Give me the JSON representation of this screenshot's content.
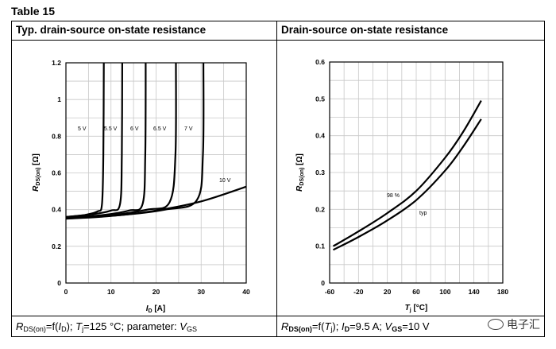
{
  "table_label": "Table 15",
  "left_header": "Typ. drain-source on-state resistance",
  "right_header": "Drain-source on-state resistance",
  "left_caption": {
    "r": "R",
    "r_sub": "DS(on)",
    "eq": "=f(",
    "i": "I",
    "i_sub": "D",
    "mid": "); ",
    "t": "T",
    "t_sub": "j",
    "rest": "=125 °C; parameter: ",
    "v": "V",
    "v_sub": "GS"
  },
  "right_caption": {
    "r": "R",
    "r_sub": "DS(on)",
    "eq": "=f(",
    "t": "T",
    "t_sub": "j",
    "mid": "); ",
    "i": "I",
    "i_sub": "D",
    "rest1": "=9.5 A; ",
    "v": "V",
    "v_sub": "GS",
    "rest2": "=10 V"
  },
  "watermark": "电子汇",
  "chart_data": [
    {
      "type": "line",
      "title": "Typ. drain-source on-state resistance",
      "xlabel": "I_D [A]",
      "ylabel": "R_DS(on) [Ω]",
      "xlim": [
        0,
        40
      ],
      "ylim": [
        0,
        1.2
      ],
      "xticks": [
        0,
        10,
        20,
        30,
        40
      ],
      "yticks": [
        0,
        0.2,
        0.4,
        0.6,
        0.8,
        1,
        1.2
      ],
      "xtick_labels": [
        "0",
        "10",
        "20",
        "30",
        "40"
      ],
      "ytick_labels": [
        "0",
        "0.2",
        "0.4",
        "0.6",
        "0.8",
        "1",
        "1.2"
      ],
      "series": [
        {
          "name": "5 V",
          "x": [
            0,
            4,
            7,
            8,
            8.3,
            8.4
          ],
          "y": [
            0.36,
            0.37,
            0.39,
            0.43,
            0.7,
            1.2
          ]
        },
        {
          "name": "5.5 V",
          "x": [
            0,
            6,
            10,
            12,
            12.4,
            12.5
          ],
          "y": [
            0.36,
            0.375,
            0.395,
            0.43,
            0.7,
            1.2
          ]
        },
        {
          "name": "6 V",
          "x": [
            0,
            8,
            14,
            17,
            17.6,
            17.7
          ],
          "y": [
            0.355,
            0.37,
            0.395,
            0.43,
            0.7,
            1.2
          ]
        },
        {
          "name": "6.5 V",
          "x": [
            0,
            10,
            18,
            23,
            24.3,
            24.4
          ],
          "y": [
            0.355,
            0.37,
            0.4,
            0.44,
            0.7,
            1.2
          ]
        },
        {
          "name": "7 V",
          "x": [
            0,
            12,
            22,
            29,
            30.4,
            30.5
          ],
          "y": [
            0.355,
            0.37,
            0.4,
            0.45,
            0.7,
            1.2
          ]
        },
        {
          "name": "10 V",
          "x": [
            0,
            10,
            20,
            30,
            40
          ],
          "y": [
            0.35,
            0.365,
            0.395,
            0.445,
            0.525
          ]
        }
      ],
      "annotations": [
        "5 V",
        "5.5 V",
        "6 V",
        "6.5 V",
        "7 V",
        "10 V"
      ]
    },
    {
      "type": "line",
      "title": "Drain-source on-state resistance",
      "xlabel": "T_j [°C]",
      "ylabel": "R_DS(on) [Ω]",
      "xlim": [
        -60,
        180
      ],
      "ylim": [
        0,
        0.6
      ],
      "xticks": [
        -60,
        -20,
        20,
        60,
        100,
        140,
        180
      ],
      "yticks": [
        0,
        0.1,
        0.2,
        0.3,
        0.4,
        0.5,
        0.6
      ],
      "xtick_labels": [
        "-60",
        "-20",
        "20",
        "60",
        "100",
        "140",
        "180"
      ],
      "ytick_labels": [
        "0",
        "0.1",
        "0.2",
        "0.3",
        "0.4",
        "0.5",
        "0.6"
      ],
      "series": [
        {
          "name": "98 %",
          "x": [
            -55,
            -20,
            20,
            60,
            100,
            125,
            150
          ],
          "y": [
            0.1,
            0.14,
            0.19,
            0.25,
            0.34,
            0.41,
            0.495
          ]
        },
        {
          "name": "typ",
          "x": [
            -55,
            -20,
            20,
            60,
            100,
            125,
            150
          ],
          "y": [
            0.09,
            0.125,
            0.17,
            0.225,
            0.305,
            0.37,
            0.445
          ]
        }
      ],
      "annotations": [
        "98 %",
        "typ"
      ]
    }
  ]
}
